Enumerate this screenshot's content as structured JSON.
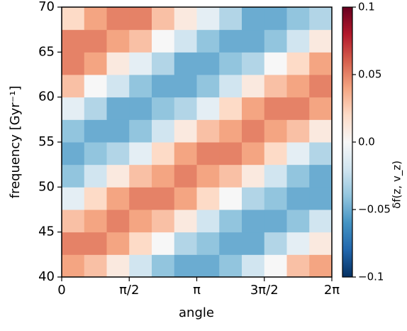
{
  "chart_data": {
    "type": "heatmap",
    "xlabel": "angle",
    "ylabel": "frequency [Gyr⁻¹]",
    "xlim": [
      0,
      6.2832
    ],
    "ylim": [
      40,
      70
    ],
    "xticks": [
      {
        "value": 0,
        "label": "0"
      },
      {
        "value": 1.5708,
        "label": "π/2"
      },
      {
        "value": 3.1416,
        "label": "π"
      },
      {
        "value": 4.7124,
        "label": "3π/2"
      },
      {
        "value": 6.2832,
        "label": "2π"
      }
    ],
    "yticks": [
      40,
      45,
      50,
      55,
      60,
      65,
      70
    ],
    "z": [
      [
        0.04,
        0.03,
        0.01,
        -0.02,
        -0.04,
        -0.05,
        -0.05,
        -0.04,
        -0.02,
        0,
        0.03,
        0.04
      ],
      [
        0.05,
        0.05,
        0.04,
        0.02,
        0,
        -0.03,
        -0.04,
        -0.05,
        -0.05,
        -0.03,
        -0.01,
        0.01
      ],
      [
        0.03,
        0.04,
        0.05,
        0.04,
        0.03,
        0.01,
        -0.02,
        -0.04,
        -0.05,
        -0.05,
        -0.04,
        -0.02
      ],
      [
        -0.01,
        0.02,
        0.04,
        0.05,
        0.05,
        0.04,
        0.02,
        0,
        -0.03,
        -0.04,
        -0.05,
        -0.05
      ],
      [
        -0.04,
        -0.02,
        0.01,
        0.03,
        0.04,
        0.05,
        0.04,
        0.03,
        0.01,
        -0.02,
        -0.04,
        -0.05
      ],
      [
        -0.05,
        -0.04,
        -0.03,
        -0.01,
        0.02,
        0.04,
        0.05,
        0.05,
        0.04,
        0.02,
        -0.01,
        -0.03
      ],
      [
        -0.04,
        -0.05,
        -0.05,
        -0.04,
        -0.02,
        0.01,
        0.03,
        0.04,
        0.05,
        0.04,
        0.03,
        0.01
      ],
      [
        -0.01,
        -0.03,
        -0.05,
        -0.05,
        -0.04,
        -0.03,
        -0.01,
        0.02,
        0.04,
        0.05,
        0.05,
        0.04
      ],
      [
        0.03,
        0,
        -0.02,
        -0.04,
        -0.05,
        -0.05,
        -0.04,
        -0.02,
        0.01,
        0.03,
        0.04,
        0.05
      ],
      [
        0.05,
        0.04,
        0.01,
        -0.01,
        -0.03,
        -0.05,
        -0.05,
        -0.04,
        -0.03,
        0,
        0.02,
        0.04
      ],
      [
        0.05,
        0.05,
        0.04,
        0.03,
        0,
        -0.02,
        -0.04,
        -0.05,
        -0.05,
        -0.04,
        -0.02,
        0.01
      ],
      [
        0.02,
        0.04,
        0.05,
        0.05,
        0.03,
        0.01,
        -0.01,
        -0.03,
        -0.05,
        -0.05,
        -0.04,
        -0.03
      ]
    ],
    "cmap": [
      "#053061",
      "#2166ac",
      "#4393c3",
      "#92c5de",
      "#d1e5f0",
      "#f7f7f7",
      "#fddbc7",
      "#f4a582",
      "#d6604d",
      "#b2182b",
      "#67001f"
    ],
    "colorbar": {
      "label": "δf(z, v_z)",
      "lim": [
        -0.1,
        0.1
      ],
      "ticks": [
        {
          "value": -0.1,
          "label": "−0.1"
        },
        {
          "value": -0.05,
          "label": "−0.05"
        },
        {
          "value": 0,
          "label": "0.0"
        },
        0.05,
        0.1
      ]
    }
  }
}
